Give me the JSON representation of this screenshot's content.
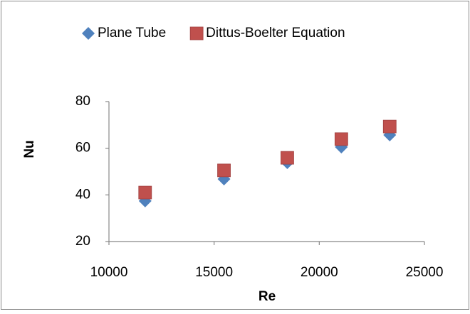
{
  "chart_data": {
    "type": "scatter",
    "x": [
      11720,
      15470,
      18480,
      21050,
      23350
    ],
    "series": [
      {
        "name": "Plane Tube",
        "color": "#4f81bd",
        "marker": "diamond",
        "values": [
          37.4,
          46.8,
          53.8,
          60.5,
          65.7
        ]
      },
      {
        "name": "Dittus-Boelter Equation",
        "color": "#c0504d",
        "marker": "square",
        "values": [
          41.0,
          50.5,
          55.9,
          63.9,
          69.3
        ]
      }
    ],
    "xlabel": "Re",
    "ylabel": "Nu",
    "xlim": [
      10000,
      25000
    ],
    "xticks": [
      10000,
      15000,
      20000,
      25000
    ],
    "ylim": [
      20,
      80
    ],
    "yticks": [
      20,
      40,
      60,
      80
    ],
    "grid": false,
    "legend": "top"
  }
}
